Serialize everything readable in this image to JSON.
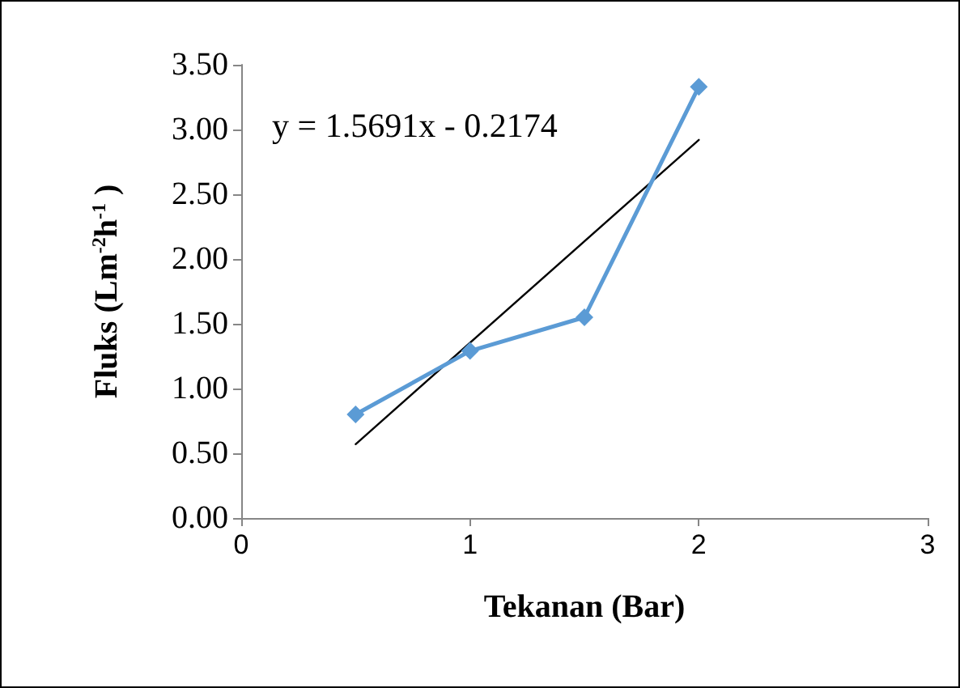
{
  "chart_data": {
    "type": "line",
    "xlabel": "Tekanan (Bar)",
    "ylabel": "Fluks (Lm$^{-2}$h$^{-1}$ )",
    "x": [
      0.5,
      1,
      1.5,
      2
    ],
    "series": [
      {
        "color": "#5b9bd5",
        "marker": "diamond",
        "values": [
          0.8,
          1.29,
          1.55,
          3.33
        ]
      },
      {
        "color": "#000000",
        "marker": "none",
        "x": [
          0.5,
          2
        ],
        "values": [
          0.57,
          2.92
        ]
      }
    ],
    "xlim": [
      0,
      3
    ],
    "xticks": [
      0,
      1,
      2,
      3
    ],
    "ylim": [
      0,
      3.5
    ],
    "yticks": [
      {
        "value": 0,
        "label": "0.00"
      },
      {
        "value": 0.5,
        "label": "0.50"
      },
      {
        "value": 1,
        "label": "1.00"
      },
      {
        "value": 1.5,
        "label": "1.50"
      },
      {
        "value": 2,
        "label": "2.00"
      },
      {
        "value": 2.5,
        "label": "2.50"
      },
      {
        "value": 3,
        "label": "3.00"
      },
      {
        "value": 3.5,
        "label": "3.50"
      }
    ],
    "annotations": [
      "y = 1.5691x - 0.2174"
    ],
    "grid": false
  }
}
